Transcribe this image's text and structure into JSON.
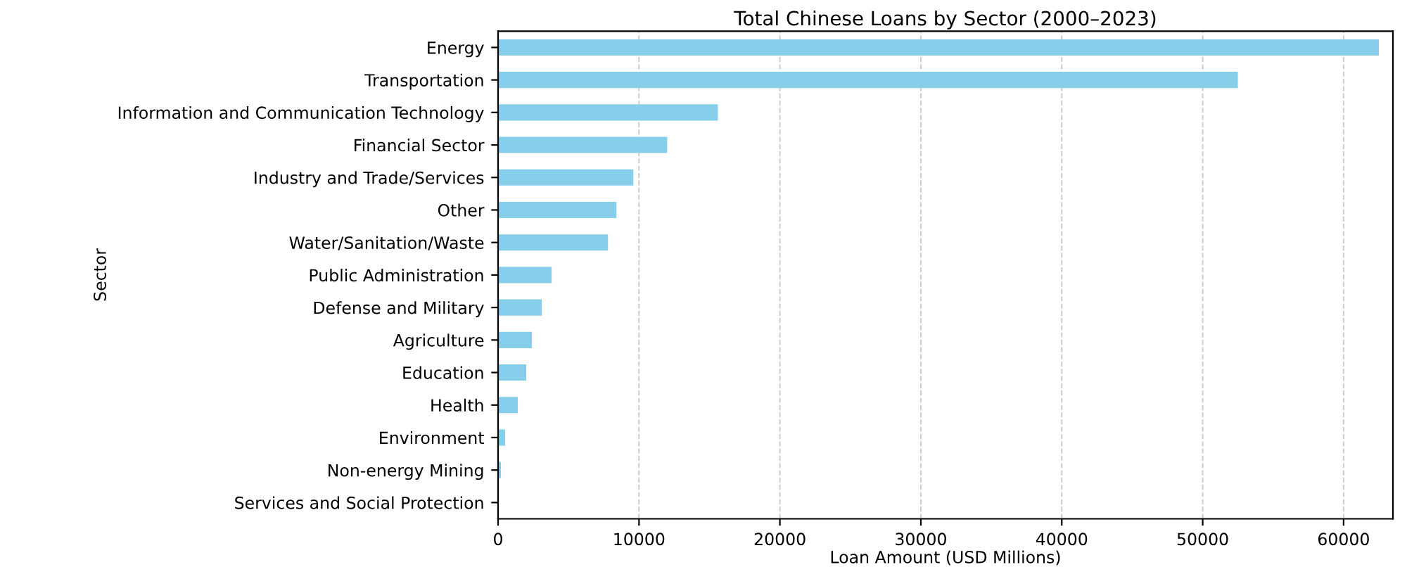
{
  "chart_data": {
    "type": "bar",
    "orientation": "horizontal",
    "title": "Total Chinese Loans by Sector (2000–2023)",
    "xlabel": "Loan Amount (USD Millions)",
    "ylabel": "Sector",
    "categories": [
      "Energy",
      "Transportation",
      "Information and Communication Technology",
      "Financial Sector",
      "Industry and Trade/Services",
      "Other",
      "Water/Sanitation/Waste",
      "Public Administration",
      "Defense and Military",
      "Agriculture",
      "Education",
      "Health",
      "Environment",
      "Non-energy Mining",
      "Services and Social Protection"
    ],
    "values": [
      62500,
      52500,
      15600,
      12000,
      9600,
      8400,
      7800,
      3800,
      3100,
      2400,
      2000,
      1400,
      500,
      200,
      0
    ],
    "color": "#87ceeb",
    "xlim": [
      0,
      63500
    ],
    "xticks": [
      0,
      10000,
      20000,
      30000,
      40000,
      50000,
      60000
    ],
    "grid": "x",
    "legend": false
  }
}
